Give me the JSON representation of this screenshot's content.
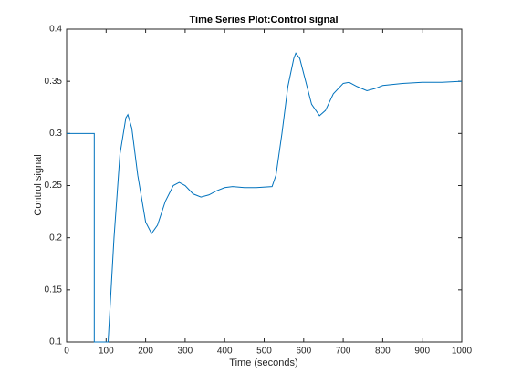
{
  "chart_data": {
    "type": "line",
    "title": "Time Series Plot:Control signal",
    "x_label": "Time (seconds)",
    "y_label": "Control signal",
    "xlim": [
      0,
      1000
    ],
    "ylim": [
      0.1,
      0.4
    ],
    "xticks": [
      0,
      100,
      200,
      300,
      400,
      500,
      600,
      700,
      800,
      900,
      1000
    ],
    "yticks": [
      0.1,
      0.15,
      0.2,
      0.25,
      0.3,
      0.35,
      0.4
    ],
    "grid": false,
    "x": [
      0,
      70,
      70,
      105,
      120,
      135,
      150,
      155,
      165,
      180,
      200,
      215,
      230,
      250,
      270,
      285,
      300,
      320,
      340,
      360,
      380,
      400,
      420,
      450,
      480,
      520,
      530,
      545,
      560,
      575,
      580,
      590,
      605,
      620,
      640,
      655,
      675,
      700,
      715,
      735,
      760,
      780,
      800,
      850,
      900,
      950,
      1000
    ],
    "series": [
      {
        "name": "Control signal",
        "color": "#0072bd",
        "values": [
          0.3,
          0.3,
          0.1,
          0.1,
          0.2,
          0.28,
          0.315,
          0.318,
          0.305,
          0.26,
          0.215,
          0.204,
          0.212,
          0.235,
          0.25,
          0.253,
          0.25,
          0.242,
          0.239,
          0.241,
          0.245,
          0.248,
          0.249,
          0.248,
          0.248,
          0.249,
          0.26,
          0.3,
          0.345,
          0.372,
          0.377,
          0.372,
          0.35,
          0.328,
          0.317,
          0.322,
          0.338,
          0.348,
          0.349,
          0.345,
          0.341,
          0.343,
          0.346,
          0.348,
          0.349,
          0.349,
          0.35
        ]
      }
    ]
  }
}
